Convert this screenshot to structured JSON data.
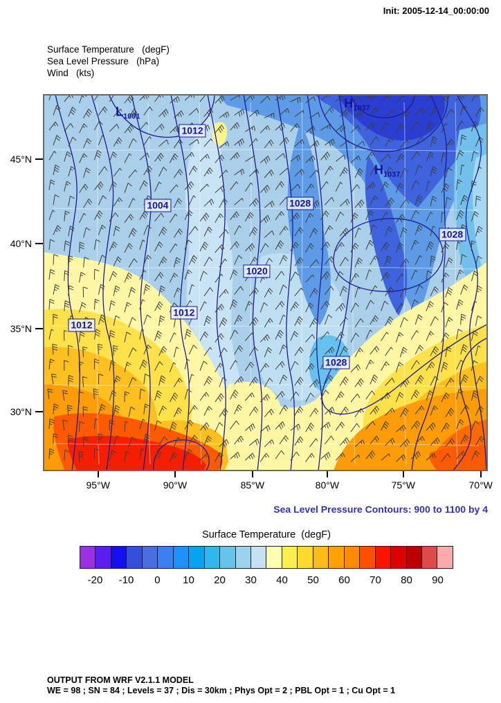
{
  "page": {
    "background": "#ffffff",
    "init_label": "Init: 2005-12-14_00:00:00"
  },
  "header": {
    "lines": [
      "Surface Temperature   (degF)",
      "Sea Level Pressure   (hPa)",
      "Wind   (kts)"
    ]
  },
  "map": {
    "x_ticks": [
      {
        "label": "95°W",
        "pos": 0.124
      },
      {
        "label": "90°W",
        "pos": 0.297
      },
      {
        "label": "85°W",
        "pos": 0.471
      },
      {
        "label": "80°W",
        "pos": 0.639
      },
      {
        "label": "75°W",
        "pos": 0.81
      },
      {
        "label": "70°W",
        "pos": 0.984
      }
    ],
    "y_ticks": [
      {
        "label": "45°N",
        "pos": 0.172
      },
      {
        "label": "40°N",
        "pos": 0.396
      },
      {
        "label": "35°N",
        "pos": 0.622
      },
      {
        "label": "30°N",
        "pos": 0.842
      }
    ]
  },
  "caption": {
    "text": "Sea Level Pressure Contours: 900 to 1100 by 4",
    "color": "#3232B4"
  },
  "colorbar": {
    "title": "Surface Temperature  (degF)",
    "colors": [
      "#9B30E2",
      "#5A1EEE",
      "#1410EB",
      "#3350DC",
      "#4A6EDE",
      "#3A80F0",
      "#1E90FA",
      "#06A3F0",
      "#30B8EC",
      "#66C3EA",
      "#9CD3EC",
      "#C6E1F2",
      "#FFFFB2",
      "#FFEF4E",
      "#FFD92B",
      "#FFBC17",
      "#FFA100",
      "#FF8B00",
      "#FF4F00",
      "#FB1500",
      "#DE0000",
      "#BE0000",
      "#DC4A4A",
      "#FFABAB"
    ],
    "tick_labels": [
      {
        "label": "-20",
        "pos": 0.0417
      },
      {
        "label": "-10",
        "pos": 0.125
      },
      {
        "label": "0",
        "pos": 0.2083
      },
      {
        "label": "10",
        "pos": 0.2917
      },
      {
        "label": "20",
        "pos": 0.375
      },
      {
        "label": "30",
        "pos": 0.4583
      },
      {
        "label": "40",
        "pos": 0.5417
      },
      {
        "label": "50",
        "pos": 0.625
      },
      {
        "label": "60",
        "pos": 0.7083
      },
      {
        "label": "70",
        "pos": 0.7917
      },
      {
        "label": "80",
        "pos": 0.875
      },
      {
        "label": "90",
        "pos": 0.9583
      }
    ]
  },
  "footer": {
    "lines": [
      "OUTPUT FROM WRF V2.1.1 MODEL",
      "WE = 98 ; SN = 84 ; Levels = 37 ; Dis = 30km ; Phys Opt = 2 ; PBL Opt = 1 ; Cu Opt = 1"
    ]
  },
  "chart_data": {
    "type": "heatmap",
    "title": "Surface Temperature (degF)",
    "overlays": [
      "Sea Level Pressure (hPa)",
      "Wind (kts)"
    ],
    "init_time": "2005-12-14_00:00:00",
    "x_axis": {
      "tick_labels": [
        "95°W",
        "90°W",
        "85°W",
        "80°W",
        "75°W",
        "70°W"
      ]
    },
    "y_axis": {
      "tick_labels": [
        "45°N",
        "40°N",
        "35°N",
        "30°N"
      ]
    },
    "colorbar": {
      "units": "degF",
      "cell_step_degF": 5,
      "range": [
        -25,
        95
      ],
      "tick_values": [
        -20,
        -10,
        0,
        10,
        20,
        30,
        40,
        50,
        60,
        70,
        80,
        90
      ]
    },
    "pressure_contours": {
      "min": 900,
      "max": 1100,
      "interval": 4,
      "labels": [
        {
          "value": 1012,
          "x": 0.336,
          "y": 0.097
        },
        {
          "value": 1004,
          "x": 0.258,
          "y": 0.295
        },
        {
          "value": 1028,
          "x": 0.578,
          "y": 0.29
        },
        {
          "value": 1020,
          "x": 0.481,
          "y": 0.47
        },
        {
          "value": 1012,
          "x": 0.087,
          "y": 0.613
        },
        {
          "value": 1012,
          "x": 0.317,
          "y": 0.58
        },
        {
          "value": 1028,
          "x": 0.92,
          "y": 0.372
        },
        {
          "value": 1028,
          "x": 0.659,
          "y": 0.712
        }
      ],
      "centers": [
        {
          "letter": "L",
          "value": 1001,
          "x": 0.191,
          "y": 0.05
        },
        {
          "letter": "H",
          "value": 1037,
          "x": 0.706,
          "y": 0.028
        },
        {
          "letter": "H",
          "value": 1037,
          "x": 0.774,
          "y": 0.204
        }
      ]
    }
  }
}
